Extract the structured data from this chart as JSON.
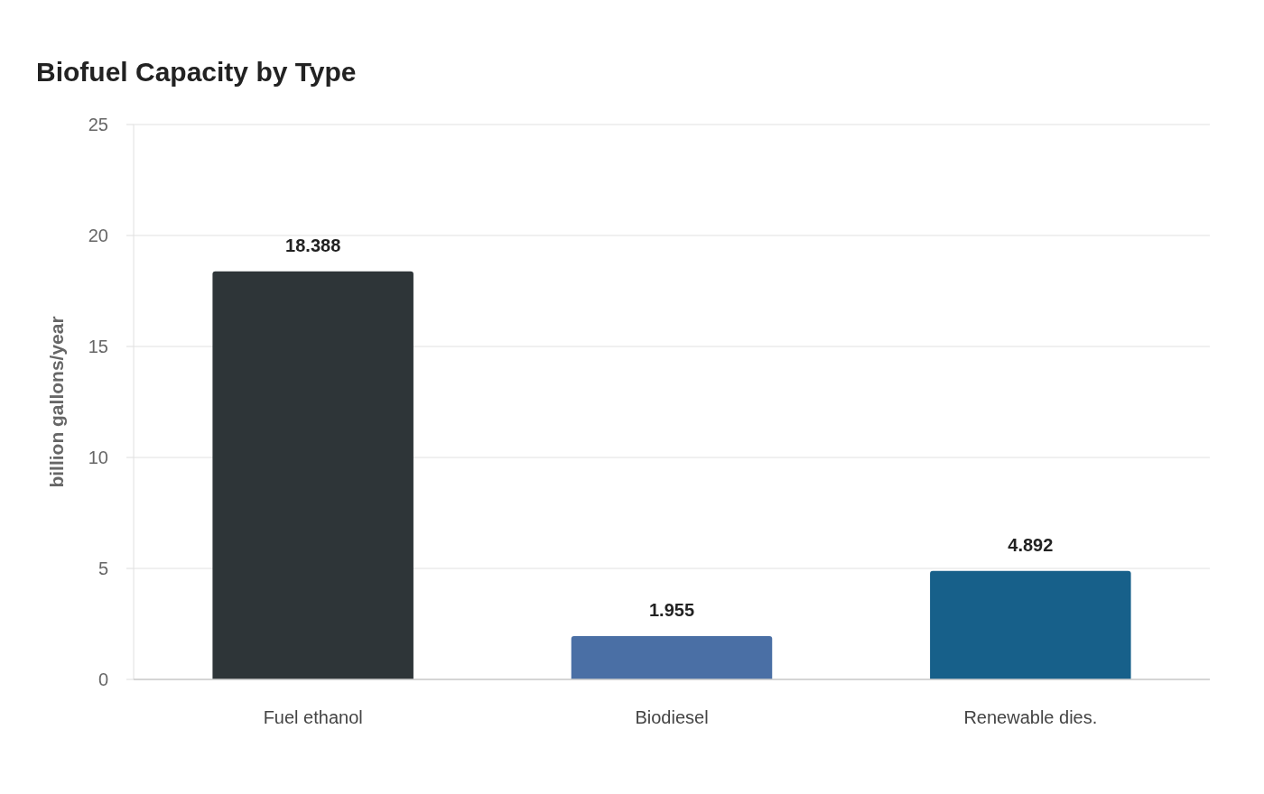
{
  "chart_data": {
    "type": "bar",
    "title": "Biofuel Capacity by Type",
    "ylabel": "billion gallons/year",
    "categories": [
      "Fuel ethanol",
      "Biodiesel",
      "Renewable dies."
    ],
    "values": [
      18.388,
      1.955,
      4.892
    ],
    "colors": [
      "#2e3538",
      "#4a6fa5",
      "#17608a"
    ],
    "ylim": [
      0,
      25
    ],
    "yticks": [
      0,
      5,
      10,
      15,
      20,
      25
    ],
    "grid": "y",
    "data_labels": true
  }
}
